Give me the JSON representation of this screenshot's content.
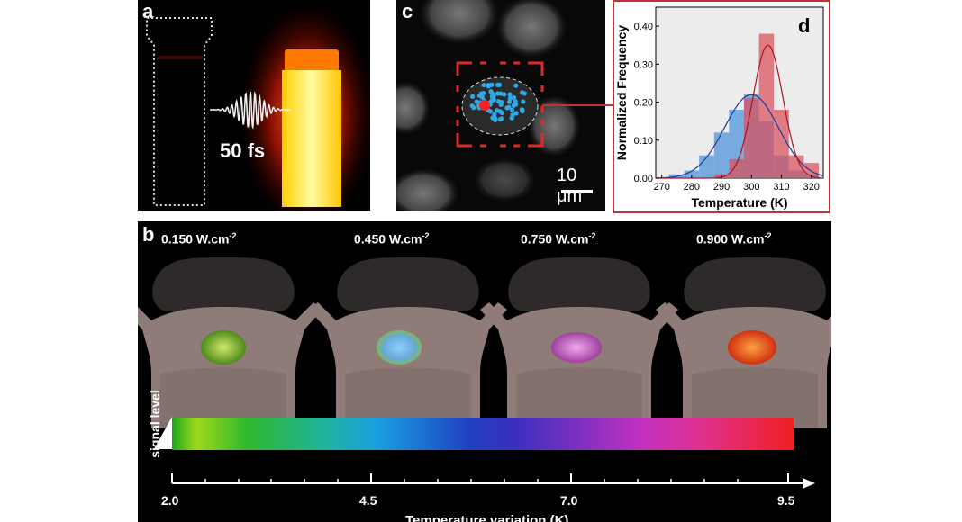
{
  "panels": {
    "a": {
      "label": "a",
      "pulse_label": "50 fs"
    },
    "c": {
      "label": "c",
      "scalebar_value": "10",
      "scalebar_unit": "μm"
    },
    "d": {
      "label": "d"
    },
    "b": {
      "label": "b",
      "power_densities": [
        {
          "value": "0.150 W.cm",
          "exp": "-2"
        },
        {
          "value": "0.450 W.cm",
          "exp": "-2"
        },
        {
          "value": "0.750 W.cm",
          "exp": "-2"
        },
        {
          "value": "0.900 W.cm",
          "exp": "-2"
        }
      ],
      "signal_label": "signal level",
      "temp_axis": {
        "ticks": [
          "2.0",
          "4.5",
          "7.0",
          "9.5"
        ],
        "label": "Temperature variation (K)"
      }
    }
  },
  "colors": {
    "blue_hist": "#4a90d9",
    "red_hist": "#d9505a",
    "panel_d_border": "#c0323a"
  },
  "chart_data": {
    "type": "bar",
    "title": "",
    "xlabel": "Temperature (K)",
    "ylabel": "Normalized Frequency",
    "xlim": [
      268,
      324
    ],
    "ylim": [
      0,
      0.45
    ],
    "xticks": [
      270,
      280,
      290,
      300,
      310,
      320
    ],
    "yticks": [
      "0.00",
      "0.10",
      "0.20",
      "0.30",
      "0.40"
    ],
    "bin_width": 5,
    "series": [
      {
        "name": "blue",
        "bins": [
          [
            275,
            0.01
          ],
          [
            280,
            0.02
          ],
          [
            285,
            0.06
          ],
          [
            290,
            0.12
          ],
          [
            295,
            0.18
          ],
          [
            300,
            0.22
          ],
          [
            305,
            0.15
          ],
          [
            310,
            0.06
          ],
          [
            315,
            0.02
          ],
          [
            320,
            0.01
          ]
        ],
        "fit": {
          "mean": 300,
          "sd": 9,
          "amp": 0.22
        }
      },
      {
        "name": "red",
        "bins": [
          [
            290,
            0.01
          ],
          [
            295,
            0.05
          ],
          [
            300,
            0.21
          ],
          [
            305,
            0.38
          ],
          [
            310,
            0.18
          ],
          [
            315,
            0.06
          ],
          [
            320,
            0.04
          ]
        ],
        "fit": {
          "mean": 305.5,
          "sd": 5,
          "amp": 0.35
        }
      }
    ]
  }
}
